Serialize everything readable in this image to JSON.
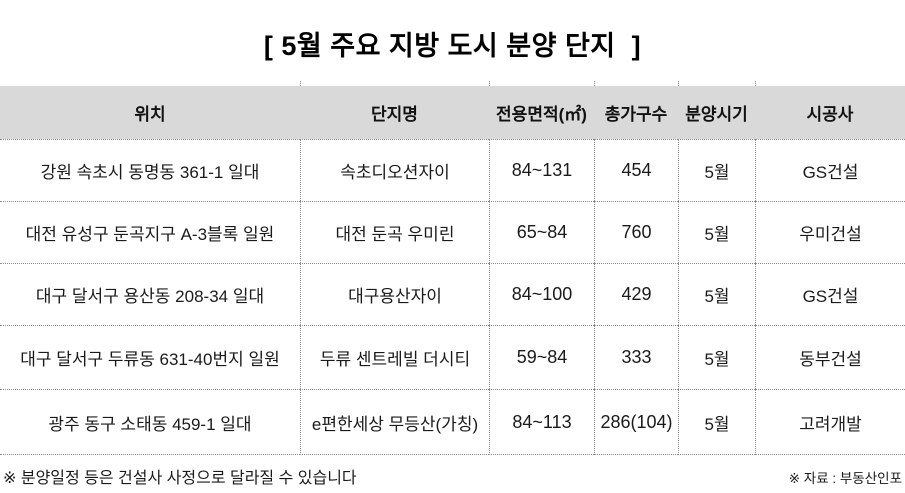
{
  "title": "[ 5월 주요 지방 도시 분양 단지  ]",
  "chart_data": {
    "type": "table",
    "title": "[ 5월 주요 지방 도시 분양 단지 ]",
    "columns": [
      "위치",
      "단지명",
      "전용면적(㎡)",
      "총가구수",
      "분양시기",
      "시공사"
    ],
    "rows": [
      [
        "강원 속초시 동명동 361-1 일대",
        "속초디오션자이",
        "84~131",
        "454",
        "5월",
        "GS건설"
      ],
      [
        "대전 유성구 둔곡지구 A-3블록 일원",
        "대전 둔곡 우미린",
        "65~84",
        "760",
        "5월",
        "우미건설"
      ],
      [
        "대구 달서구 용산동 208-34 일대",
        "대구용산자이",
        "84~100",
        "429",
        "5월",
        "GS건설"
      ],
      [
        "대구 달서구 두류동 631-40번지 일원",
        "두류 센트레빌 더시티",
        "59~84",
        "333",
        "5월",
        "동부건설"
      ],
      [
        "광주 동구 소태동 459-1 일대",
        "e편한세상 무등산(가칭)",
        "84~113",
        "286(104)",
        "5월",
        "고려개발"
      ]
    ]
  },
  "footnotes": {
    "left": "※ 분양일정 등은 건설사 사정으로 달라질 수 있습니다",
    "right": "※ 자료 : 부동산인포"
  },
  "colors": {
    "header_bg": "#d9d9d9",
    "grid_line": "#8c8c8c",
    "text": "#1a1a1a"
  }
}
